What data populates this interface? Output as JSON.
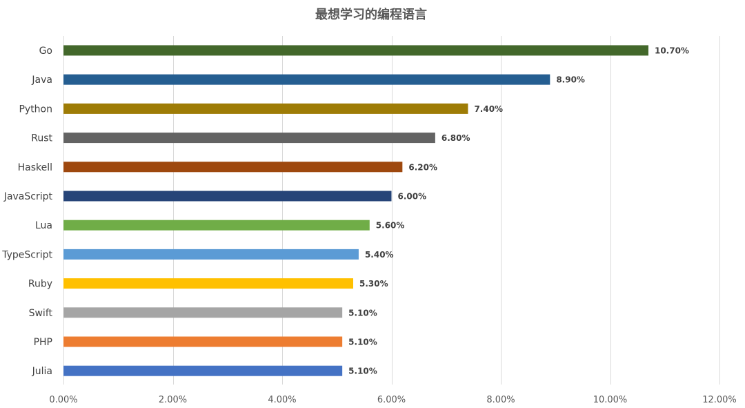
{
  "chart_data": {
    "type": "bar",
    "orientation": "horizontal",
    "title": "最想学习的编程语言",
    "xlabel": "",
    "ylabel": "",
    "xlim": [
      0,
      12
    ],
    "x_ticks": [
      0,
      2,
      4,
      6,
      8,
      10,
      12
    ],
    "x_tick_labels": [
      "0.00%",
      "2.00%",
      "4.00%",
      "6.00%",
      "8.00%",
      "10.00%",
      "12.00%"
    ],
    "value_unit": "%",
    "grid": "vertical",
    "legend": "none",
    "categories": [
      "Go",
      "Java",
      "Python",
      "Rust",
      "Haskell",
      "JavaScript",
      "Lua",
      "TypeScript",
      "Ruby",
      "Swift",
      "PHP",
      "Julia"
    ],
    "values": [
      10.7,
      8.9,
      7.4,
      6.8,
      6.2,
      6.0,
      5.6,
      5.4,
      5.3,
      5.1,
      5.1,
      5.1
    ],
    "data_labels": [
      "10.70%",
      "8.90%",
      "7.40%",
      "6.80%",
      "6.20%",
      "6.00%",
      "5.60%",
      "5.40%",
      "5.30%",
      "5.10%",
      "5.10%",
      "5.10%"
    ],
    "colors": [
      "#43682b",
      "#255e91",
      "#9e7c06",
      "#636363",
      "#9e480e",
      "#264478",
      "#70ad47",
      "#5b9bd5",
      "#ffc000",
      "#a5a5a5",
      "#ed7d31",
      "#4472c4"
    ]
  }
}
